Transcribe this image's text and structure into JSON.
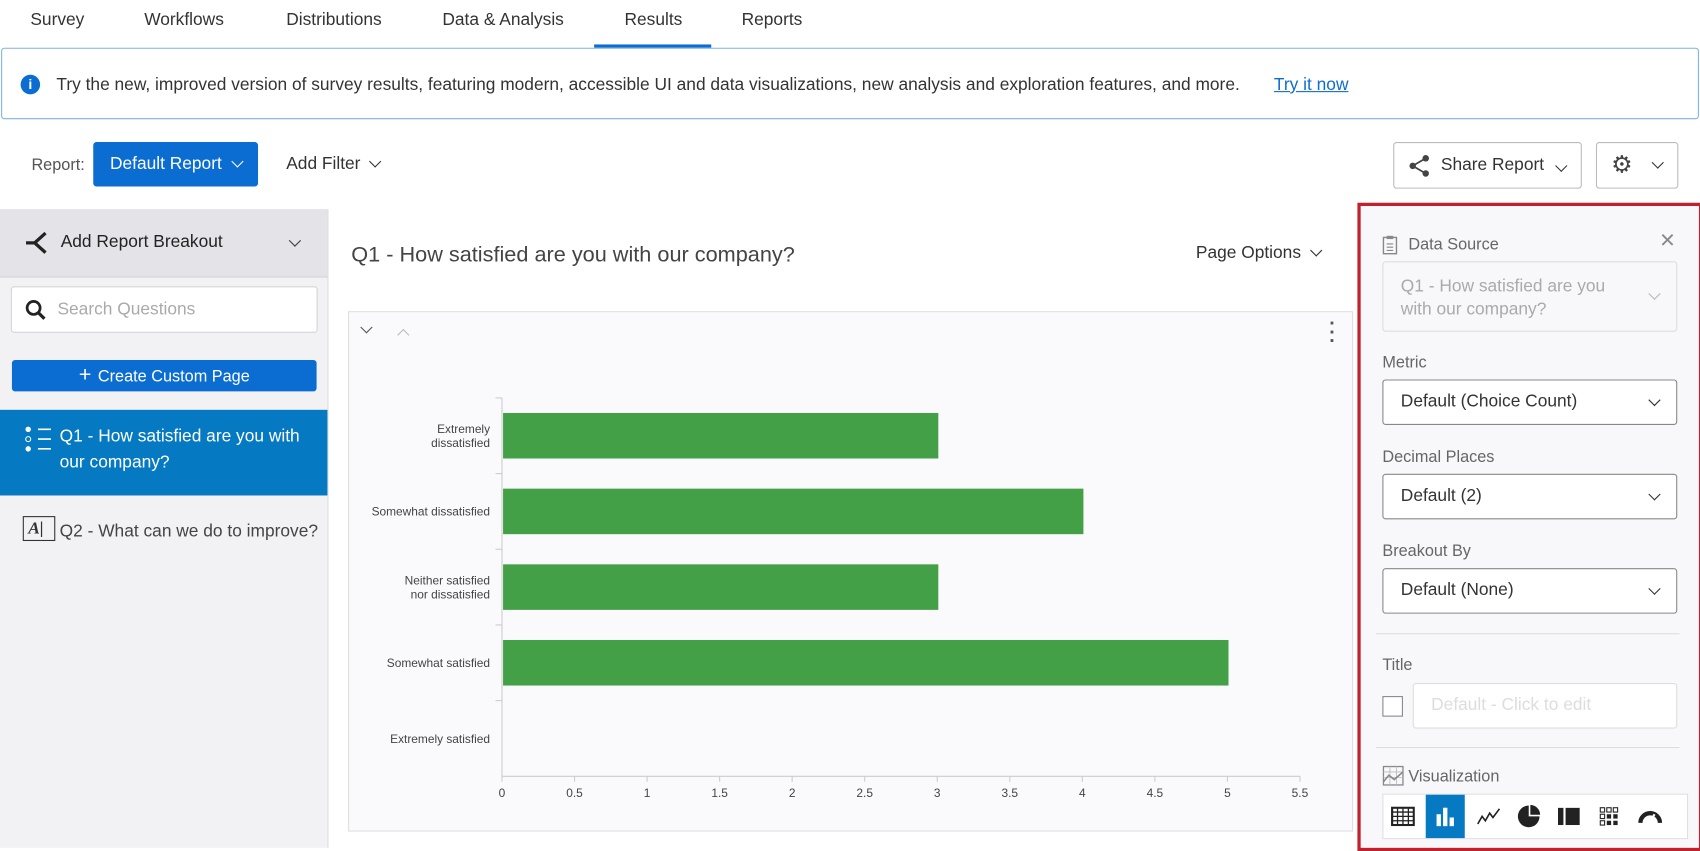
{
  "tabs": [
    {
      "label": "Survey"
    },
    {
      "label": "Workflows"
    },
    {
      "label": "Distributions"
    },
    {
      "label": "Data & Analysis"
    },
    {
      "label": "Results",
      "active": true
    },
    {
      "label": "Reports"
    }
  ],
  "banner": {
    "message": "Try the new, improved version of survey results, featuring modern, accessible UI and data visualizations, new analysis and exploration features, and more.",
    "link": "Try it now"
  },
  "toolbar": {
    "report_label": "Report:",
    "report_value": "Default Report",
    "add_filter": "Add Filter",
    "share_report": "Share Report"
  },
  "sidebar": {
    "breakout": "Add Report Breakout",
    "search_placeholder": "Search Questions",
    "create_page": "Create Custom Page",
    "questions": [
      {
        "label": "Q1 - How satisfied are you with our company?",
        "selected": true,
        "icon": "multiple-choice-icon"
      },
      {
        "label": "Q2 - What can we do to improve?",
        "icon": "text-entry-icon"
      }
    ]
  },
  "main": {
    "title": "Q1 - How satisfied are you with our company?",
    "page_options": "Page Options"
  },
  "chart_data": {
    "type": "bar",
    "orientation": "horizontal",
    "categories": [
      "Extremely dissatisfied",
      "Somewhat dissatisfied",
      "Neither satisfied nor dissatisfied",
      "Somewhat satisfied",
      "Extremely satisfied"
    ],
    "values": [
      3,
      4,
      3,
      5,
      0
    ],
    "xlim": [
      0,
      5.5
    ],
    "xticks": [
      "0",
      "0.5",
      "1",
      "1.5",
      "2",
      "2.5",
      "3",
      "3.5",
      "4",
      "4.5",
      "5",
      "5.5"
    ],
    "bar_color": "#43a047"
  },
  "panel": {
    "data_source_label": "Data Source",
    "data_source_value": "Q1 - How satisfied are you with our company?",
    "metric_label": "Metric",
    "metric_value": "Default (Choice Count)",
    "decimal_label": "Decimal Places",
    "decimal_value": "Default (2)",
    "breakout_label": "Breakout By",
    "breakout_value": "Default (None)",
    "title_label": "Title",
    "title_placeholder": "Default - Click to edit",
    "visualization_label": "Visualization",
    "visualizations": [
      "table-icon",
      "bar-chart-icon",
      "line-chart-icon",
      "pie-chart-icon",
      "stacked-bar-icon",
      "heat-map-icon",
      "gauge-icon"
    ],
    "selected_visualization": "bar-chart-icon",
    "accent": "#0579c2",
    "highlight_border": "#c0212f"
  }
}
